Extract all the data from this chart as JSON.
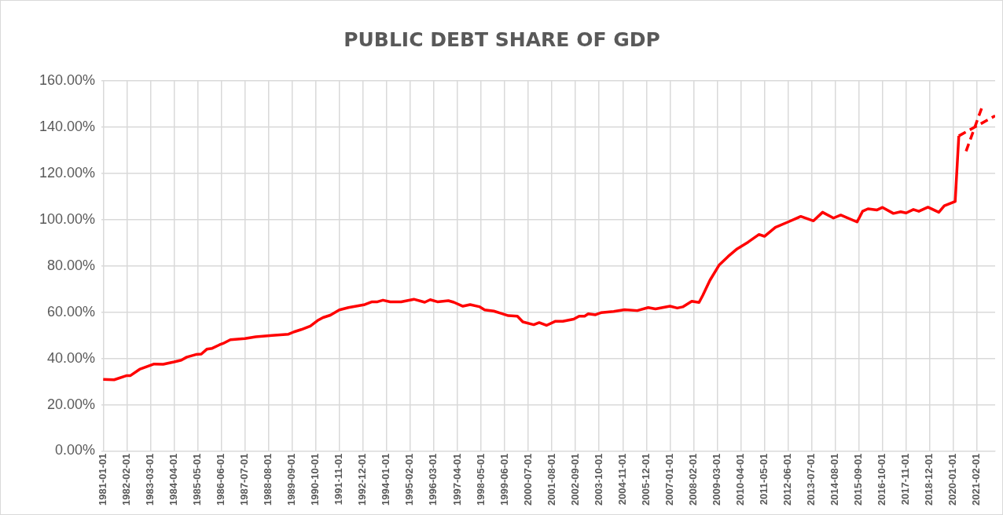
{
  "chart_data": {
    "type": "line",
    "title": "PUBLIC DEBT SHARE OF GDP",
    "series": [
      {
        "color": "#ff0000",
        "line_style": "solid",
        "x": [
          "1981-01",
          "1981-07",
          "1982-02",
          "1982-04",
          "1982-09",
          "1983-05",
          "1983-10",
          "1984-04",
          "1984-08",
          "1984-11",
          "1985-04",
          "1985-07",
          "1985-10",
          "1986-01",
          "1986-05",
          "1986-07",
          "1986-11",
          "1987-07",
          "1988-01",
          "1988-10",
          "1989-07",
          "1989-10",
          "1990-02",
          "1990-07",
          "1990-11",
          "1991-02",
          "1991-06",
          "1991-11",
          "1992-04",
          "1993-01",
          "1993-05",
          "1993-08",
          "1993-11",
          "1994-03",
          "1994-09",
          "1995-04",
          "1995-10",
          "1996-01",
          "1996-05",
          "1996-11",
          "1997-02",
          "1997-07",
          "1997-11",
          "1998-04",
          "1998-07",
          "1998-12",
          "1999-04",
          "1999-08",
          "2000-01",
          "2000-04",
          "2000-10",
          "2001-01",
          "2001-05",
          "2001-10",
          "2002-02",
          "2002-08",
          "2002-11",
          "2003-02",
          "2003-04",
          "2003-08",
          "2003-11",
          "2004-06",
          "2004-12",
          "2005-07",
          "2006-01",
          "2006-05",
          "2007-01",
          "2007-05",
          "2007-08",
          "2008-01",
          "2008-05",
          "2008-07",
          "2008-11",
          "2009-04",
          "2009-09",
          "2010-02",
          "2010-08",
          "2011-02",
          "2011-05",
          "2011-11",
          "2012-06",
          "2013-01",
          "2013-08",
          "2014-01",
          "2014-07",
          "2014-11",
          "2015-08",
          "2015-11",
          "2016-02",
          "2016-07",
          "2016-10",
          "2017-04",
          "2017-08",
          "2017-11",
          "2018-03",
          "2018-06",
          "2018-11",
          "2019-05",
          "2019-08",
          "2020-02",
          "2020-04"
        ],
        "values": [
          31.0,
          30.8,
          32.6,
          32.6,
          35.3,
          37.6,
          37.5,
          38.5,
          39.3,
          40.6,
          41.7,
          41.9,
          44.0,
          44.4,
          45.9,
          46.5,
          48.1,
          48.6,
          49.4,
          50.0,
          50.5,
          51.5,
          52.5,
          54.0,
          56.4,
          57.7,
          58.7,
          61.0,
          62.0,
          63.3,
          64.5,
          64.5,
          65.2,
          64.5,
          64.5,
          65.6,
          64.3,
          65.4,
          64.5,
          65.0,
          64.3,
          62.6,
          63.3,
          62.4,
          61.0,
          60.5,
          59.5,
          58.5,
          58.3,
          55.8,
          54.6,
          55.5,
          54.3,
          56.1,
          56.1,
          57.0,
          58.3,
          58.3,
          59.3,
          58.9,
          59.8,
          60.3,
          61.1,
          60.7,
          62.0,
          61.4,
          62.6,
          61.8,
          62.3,
          64.7,
          64.2,
          67.2,
          73.8,
          80.3,
          84.1,
          87.4,
          90.3,
          93.6,
          92.8,
          96.7,
          99.0,
          101.4,
          99.5,
          103.2,
          100.7,
          102.0,
          99.0,
          103.6,
          104.7,
          104.2,
          105.3,
          102.7,
          103.4,
          102.9,
          104.4,
          103.6,
          105.4,
          103.2,
          106.0,
          107.9,
          136.2
        ]
      },
      {
        "color": "#ff0000",
        "line_style": "dashed",
        "x": [
          "2020-04",
          "2021-12"
        ],
        "values": [
          136.2,
          144.9
        ]
      },
      {
        "color": "#ff0000",
        "line_style": "dashed",
        "x": [
          "2020-08",
          "2021-05"
        ],
        "values": [
          129.6,
          149.1
        ]
      }
    ],
    "xlim": [
      "1980-12-01",
      "2021-12-01"
    ],
    "xticks": [
      "1981-01-01",
      "1982-02-01",
      "1983-03-01",
      "1984-04-01",
      "1985-05-01",
      "1986-06-01",
      "1987-07-01",
      "1988-08-01",
      "1989-09-01",
      "1990-10-01",
      "1991-11-01",
      "1992-12-01",
      "1994-01-01",
      "1995-02-01",
      "1996-03-01",
      "1997-04-01",
      "1998-05-01",
      "1999-06-01",
      "2000-07-01",
      "2001-08-01",
      "2002-09-01",
      "2003-10-01",
      "2004-11-01",
      "2005-12-01",
      "2007-01-01",
      "2008-02-01",
      "2009-03-01",
      "2010-04-01",
      "2011-05-01",
      "2012-06-01",
      "2013-07-01",
      "2014-08-01",
      "2015-09-01",
      "2016-10-01",
      "2017-11-01",
      "2018-12-01",
      "2020-01-01",
      "2021-02-01"
    ],
    "ylim": [
      0,
      160
    ],
    "yticks": [
      {
        "value": 0,
        "label": "0.00%"
      },
      {
        "value": 20,
        "label": "20.00%"
      },
      {
        "value": 40,
        "label": "40.00%"
      },
      {
        "value": 60,
        "label": "60.00%"
      },
      {
        "value": 80,
        "label": "80.00%"
      },
      {
        "value": 100,
        "label": "100.00%"
      },
      {
        "value": 120,
        "label": "120.00%"
      },
      {
        "value": 140,
        "label": "140.00%"
      },
      {
        "value": 160,
        "label": "160.00%"
      }
    ],
    "grid": true,
    "legend": false,
    "marker": "none"
  }
}
